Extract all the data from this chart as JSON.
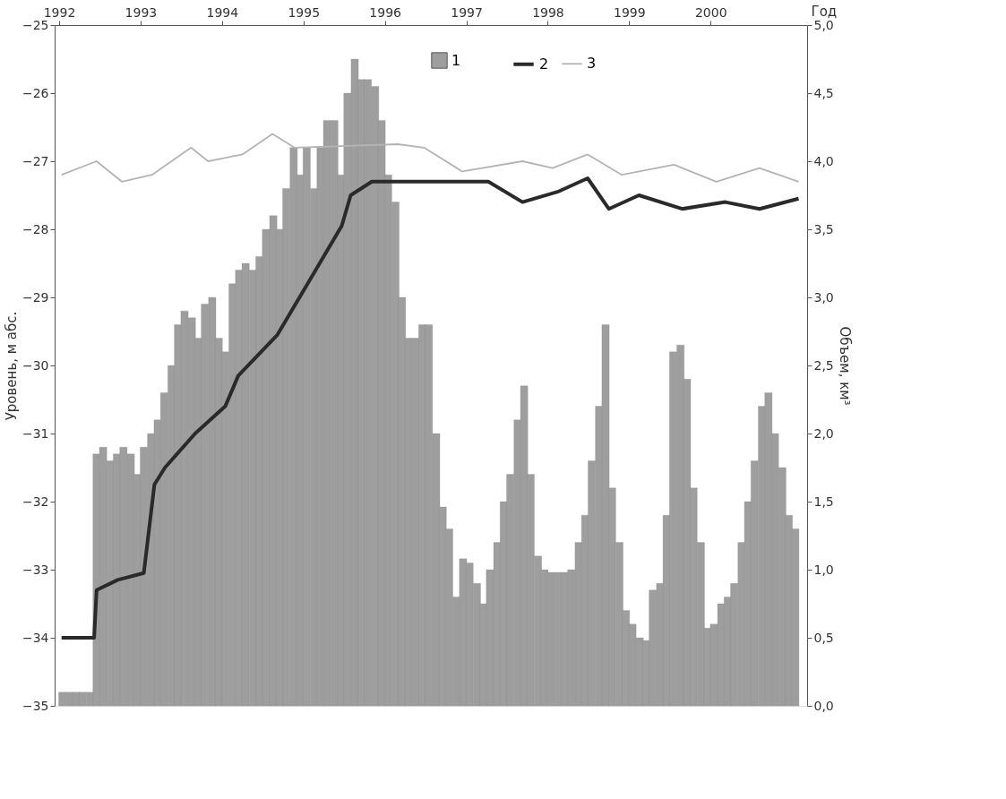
{
  "chart_data": {
    "type": "bar",
    "xlabel": "Год",
    "ylabel": "Уровень, м абс.",
    "y2label": "Объем, км³",
    "xlim": [
      1992,
      2001.13
    ],
    "xticks": [
      1992,
      1993,
      1994,
      1995,
      1996,
      1997,
      1998,
      1999,
      2000
    ],
    "ylim": [
      -35,
      -25
    ],
    "yticks": [
      -25,
      -26,
      -27,
      -28,
      -29,
      -30,
      -31,
      -32,
      -33,
      -34,
      -35
    ],
    "y2lim": [
      0,
      5
    ],
    "y2ticks": [
      {
        "value": 0,
        "label": "0,0"
      },
      {
        "value": 0.5,
        "label": "0,5"
      },
      {
        "value": 1,
        "label": "1,0"
      },
      {
        "value": 1.5,
        "label": "1,5"
      },
      {
        "value": 2,
        "label": "2,0"
      },
      {
        "value": 2.5,
        "label": "2,5"
      },
      {
        "value": 3,
        "label": "3,0"
      },
      {
        "value": 3.5,
        "label": "3,5"
      },
      {
        "value": 4,
        "label": "4,0"
      },
      {
        "value": 4.5,
        "label": "4,5"
      },
      {
        "value": 5,
        "label": "5,0"
      }
    ],
    "legend": "top right",
    "grid": false,
    "marker": "none",
    "line_style": "solid",
    "series": [
      {
        "name": "1",
        "axis": "y2",
        "color": "#9e9e9e",
        "x": [
          1992.04,
          1992.13,
          1992.21,
          1992.29,
          1992.38,
          1992.46,
          1992.54,
          1992.63,
          1992.71,
          1992.79,
          1992.88,
          1992.96,
          1993.04,
          1993.13,
          1993.21,
          1993.29,
          1993.38,
          1993.46,
          1993.54,
          1993.63,
          1993.71,
          1993.79,
          1993.88,
          1993.96,
          1994.04,
          1994.13,
          1994.21,
          1994.29,
          1994.38,
          1994.46,
          1994.54,
          1994.63,
          1994.71,
          1994.79,
          1994.88,
          1994.96,
          1995.04,
          1995.13,
          1995.21,
          1995.29,
          1995.38,
          1995.46,
          1995.54,
          1995.63,
          1995.71,
          1995.79,
          1995.88,
          1995.96,
          1996.04,
          1996.13,
          1996.21,
          1996.29,
          1996.38,
          1996.46,
          1996.54,
          1996.63,
          1996.71,
          1996.79,
          1996.88,
          1996.96,
          1997.04,
          1997.13,
          1997.21,
          1997.29,
          1997.38,
          1997.46,
          1997.54,
          1997.63,
          1997.71,
          1997.79,
          1997.88,
          1997.96,
          1998.04,
          1998.13,
          1998.21,
          1998.29,
          1998.38,
          1998.46,
          1998.54,
          1998.63,
          1998.71,
          1998.79,
          1998.88,
          1998.96,
          1999.04,
          1999.13,
          1999.21,
          1999.29,
          1999.38,
          1999.46,
          1999.54,
          1999.63,
          1999.71,
          1999.79,
          1999.88,
          1999.96,
          2000.04,
          2000.13,
          2000.21,
          2000.29,
          2000.38,
          2000.46,
          2000.54,
          2000.63,
          2000.71,
          2000.79,
          2000.88,
          2000.96,
          2001.04
        ],
        "values": [
          0.1,
          0.1,
          0.1,
          0.1,
          0.1,
          1.85,
          1.9,
          1.8,
          1.85,
          1.9,
          1.85,
          1.7,
          1.9,
          2.0,
          2.1,
          2.3,
          2.5,
          2.8,
          2.9,
          2.85,
          2.7,
          2.95,
          3.0,
          2.7,
          2.6,
          3.1,
          3.2,
          3.25,
          3.2,
          3.3,
          3.5,
          3.6,
          3.5,
          3.8,
          4.1,
          3.9,
          4.1,
          3.8,
          4.1,
          4.3,
          4.3,
          3.9,
          4.5,
          4.75,
          4.6,
          4.6,
          4.55,
          4.3,
          3.9,
          3.7,
          3.0,
          2.7,
          2.7,
          2.8,
          2.8,
          2.0,
          1.46,
          1.3,
          0.8,
          1.08,
          1.05,
          0.9,
          0.75,
          1.0,
          1.2,
          1.5,
          1.7,
          2.1,
          2.35,
          1.7,
          1.1,
          1.0,
          0.98,
          0.98,
          0.98,
          1.0,
          1.2,
          1.4,
          1.8,
          2.2,
          2.8,
          1.6,
          1.2,
          0.7,
          0.6,
          0.5,
          0.48,
          0.85,
          0.9,
          1.4,
          2.6,
          2.65,
          2.4,
          1.6,
          1.2,
          0.57,
          0.6,
          0.75,
          0.8,
          0.9,
          1.2,
          1.5,
          1.8,
          2.2,
          2.3,
          2.0,
          1.75,
          1.4,
          1.3
        ]
      },
      {
        "name": "2",
        "type": "line",
        "color": "#2a2a2a",
        "x": [
          1992.03,
          1992.43,
          1992.46,
          1992.72,
          1993.04,
          1993.17,
          1993.3,
          1993.67,
          1994.04,
          1994.2,
          1994.68,
          1995.1,
          1995.47,
          1995.58,
          1995.84,
          1997.27,
          1997.69,
          1998.12,
          1998.49,
          1998.75,
          1999.12,
          1999.65,
          2000.18,
          2000.6,
          2001.08
        ],
        "values": [
          -34.0,
          -34.0,
          -33.3,
          -33.15,
          -33.05,
          -31.75,
          -31.5,
          -31.0,
          -30.6,
          -30.15,
          -29.55,
          -28.7,
          -27.95,
          -27.5,
          -27.3,
          -27.3,
          -27.6,
          -27.45,
          -27.25,
          -27.7,
          -27.5,
          -27.7,
          -27.6,
          -27.7,
          -27.55
        ]
      },
      {
        "name": "3",
        "type": "line",
        "color": "#b4b4b4",
        "x": [
          1992.03,
          1992.46,
          1992.77,
          1993.14,
          1993.62,
          1993.83,
          1994.25,
          1994.62,
          1994.89,
          1996.16,
          1996.48,
          1996.95,
          1997.69,
          1998.06,
          1998.49,
          1998.91,
          1999.55,
          2000.07,
          2000.6,
          2001.08
        ],
        "values": [
          -27.2,
          -27.0,
          -27.3,
          -27.2,
          -26.8,
          -27.0,
          -26.9,
          -26.6,
          -26.8,
          -26.75,
          -26.8,
          -27.15,
          -27.0,
          -27.1,
          -26.9,
          -27.2,
          -27.05,
          -27.3,
          -27.1,
          -27.3
        ]
      }
    ]
  }
}
